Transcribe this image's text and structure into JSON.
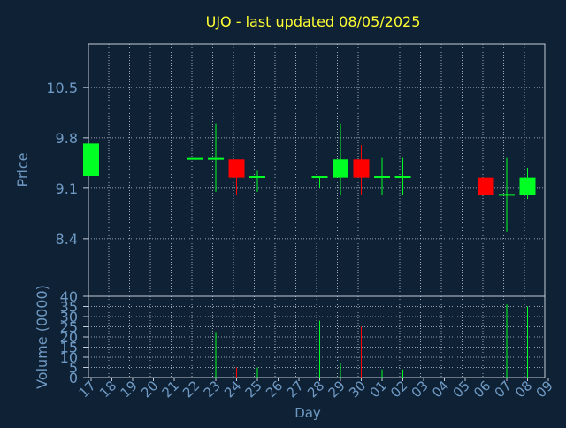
{
  "chart_data": {
    "type": "candlestick",
    "title": "UJO - last updated 08/05/2025",
    "price_axis": {
      "label": "Price",
      "ylim": [
        7.6,
        11.1
      ],
      "ticks": [
        8.4,
        9.1,
        9.8,
        10.5
      ],
      "tick_labels": [
        "8.4",
        "9.1",
        "9.8",
        "10.5"
      ]
    },
    "volume_axis": {
      "label": "Volume (0000)",
      "ylim": [
        0,
        40
      ],
      "ticks": [
        0,
        5,
        10,
        15,
        20,
        25,
        30,
        35,
        40
      ],
      "tick_labels": [
        "0",
        "5",
        "10",
        "15",
        "20",
        "25",
        "30",
        "35",
        "40"
      ]
    },
    "x_axis": {
      "label": "Day"
    },
    "days": [
      "17",
      "18",
      "19",
      "20",
      "21",
      "22",
      "23",
      "24",
      "25",
      "26",
      "27",
      "28",
      "29",
      "30",
      "01",
      "02",
      "03",
      "04",
      "05",
      "06",
      "07",
      "08",
      "09"
    ],
    "candles": [
      {
        "day": "17",
        "open": 9.27,
        "high": 9.72,
        "low": 9.27,
        "close": 9.72,
        "volume": 0
      },
      {
        "day": "22",
        "open": 9.5,
        "high": 10.0,
        "low": 9.0,
        "close": 9.52,
        "volume": 0
      },
      {
        "day": "23",
        "open": 9.5,
        "high": 10.0,
        "low": 9.05,
        "close": 9.52,
        "volume": 22
      },
      {
        "day": "24",
        "open": 9.5,
        "high": 9.5,
        "low": 9.0,
        "close": 9.25,
        "volume": 5
      },
      {
        "day": "25",
        "open": 9.25,
        "high": 9.35,
        "low": 9.05,
        "close": 9.27,
        "volume": 5
      },
      {
        "day": "28",
        "open": 9.25,
        "high": 9.27,
        "low": 9.1,
        "close": 9.27,
        "volume": 28
      },
      {
        "day": "29",
        "open": 9.25,
        "high": 10.0,
        "low": 9.0,
        "close": 9.5,
        "volume": 7
      },
      {
        "day": "30",
        "open": 9.5,
        "high": 9.7,
        "low": 9.0,
        "close": 9.25,
        "volume": 25
      },
      {
        "day": "01",
        "open": 9.25,
        "high": 9.52,
        "low": 9.0,
        "close": 9.27,
        "volume": 4
      },
      {
        "day": "02",
        "open": 9.25,
        "high": 9.52,
        "low": 9.0,
        "close": 9.27,
        "volume": 4
      },
      {
        "day": "06",
        "open": 9.25,
        "high": 9.5,
        "low": 8.95,
        "close": 9.0,
        "volume": 24
      },
      {
        "day": "07",
        "open": 9.0,
        "high": 9.52,
        "low": 8.5,
        "close": 9.02,
        "volume": 36
      },
      {
        "day": "08",
        "open": 9.0,
        "high": 9.38,
        "low": 8.95,
        "close": 9.25,
        "volume": 35
      }
    ]
  },
  "colors": {
    "background": "#0f2135",
    "grid": "#c0ccd8",
    "axis_text": "#6f9ac4",
    "title": "#ffff33",
    "up": "#00ff22",
    "down": "#ff0000"
  }
}
